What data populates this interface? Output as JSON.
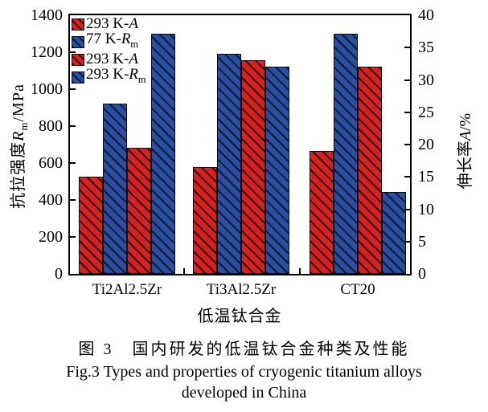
{
  "chart_data": {
    "type": "bar",
    "categories": [
      "Ti2Al2.5Zr",
      "Ti3Al2.5Zr",
      "CT20"
    ],
    "series": [
      {
        "label_pre": "293 K-",
        "label_sym": "A",
        "label_sub": "",
        "color": "#d42221",
        "hatch": "#40090d",
        "axis": "right",
        "unit": "%",
        "values": [
          15,
          16.5,
          19
        ]
      },
      {
        "label_pre": "77 K-",
        "label_sym": "R",
        "label_sub": "m",
        "color": "#2b4f9f",
        "hatch": "#0d1c3e",
        "axis": "left",
        "unit": "MPa",
        "values": [
          920,
          1190,
          1300
        ]
      },
      {
        "label_pre": "293 K-",
        "label_sym": "A",
        "label_sub": "",
        "color": "#d42221",
        "hatch": "#40090d",
        "axis": "right",
        "unit": "%",
        "values": [
          19.5,
          33,
          32
        ]
      },
      {
        "label_pre": "293 K-",
        "label_sym": "R",
        "label_sub": "m",
        "color": "#2b4f9f",
        "hatch": "#0d1c3e",
        "axis": "left",
        "unit": "MPa",
        "values": [
          1300,
          1120,
          445
        ]
      }
    ],
    "left_axis": {
      "title_pre": "抗拉强度",
      "title_sym": "R",
      "title_sub": "m",
      "title_post": "/MPa",
      "min": 0,
      "max": 1400,
      "ticks": [
        0,
        200,
        400,
        600,
        800,
        1000,
        1200,
        1400
      ]
    },
    "right_axis": {
      "title_pre": "伸长率",
      "title_sym": "A",
      "title_sub": "",
      "title_post": "/%",
      "min": 0,
      "max": 40,
      "ticks": [
        0,
        5,
        10,
        15,
        20,
        25,
        30,
        35,
        40
      ]
    },
    "xlabel": "低温钛合金",
    "legend_position": "top-left",
    "grid": false
  },
  "caption": {
    "zh": "图 3　国内研发的低温钛合金种类及性能",
    "en_line1": "Fig.3 Types and properties of cryogenic titanium alloys",
    "en_line2": "developed in China"
  }
}
